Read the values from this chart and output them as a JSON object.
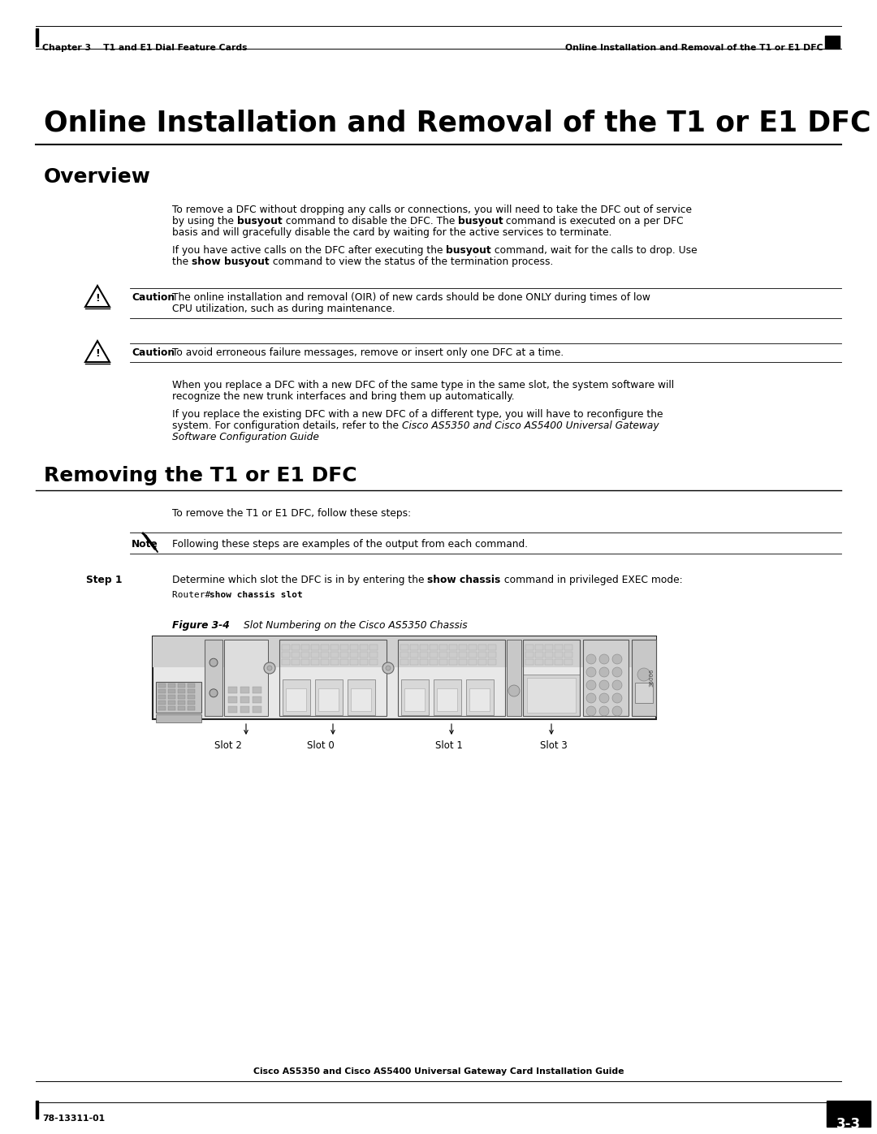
{
  "page_title": "Online Installation and Removal of the T1 or E1 DFC",
  "header_left": "Chapter 3    T1 and E1 Dial Feature Cards",
  "header_right": "Online Installation and Removal of the T1 or E1 DFC",
  "footer_left": "78-13311-01",
  "footer_center": "Cisco AS5350 and Cisco AS5400 Universal Gateway Card Installation Guide",
  "footer_page": "3-3",
  "section1_title": "Overview",
  "section2_title": "Removing the T1 or E1 DFC",
  "section2_intro": "To remove the T1 or E1 DFC, follow these steps:",
  "note_text": "Following these steps are examples of the output from each command.",
  "step1_label": "Step 1",
  "step1_code": "Router# show chassis slot",
  "figure_label": "Figure 3-4",
  "figure_title": "Slot Numbering on the Cisco AS5350 Chassis",
  "slot_labels": [
    "Slot 2",
    "Slot 0",
    "Slot 1",
    "Slot 3"
  ],
  "bg_color": "#ffffff"
}
